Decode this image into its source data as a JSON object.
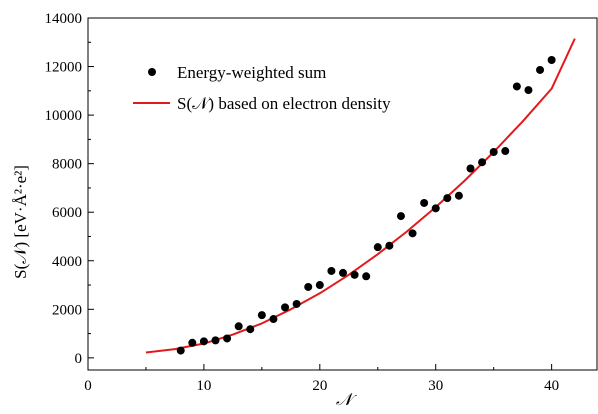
{
  "chart_data": {
    "type": "scatter",
    "title": "",
    "xlabel": "𝒩",
    "ylabel": "S(𝒩) [eV·Å²·e²]",
    "xlim": [
      0,
      44
    ],
    "ylim": [
      -500,
      14000
    ],
    "xticks": [
      0,
      10,
      20,
      30,
      40
    ],
    "yticks": [
      0,
      2000,
      4000,
      6000,
      8000,
      10000,
      12000,
      14000
    ],
    "grid": false,
    "legend_position": "top-left",
    "series": [
      {
        "name": "Energy-weighted sum",
        "kind": "scatter",
        "color": "#000000",
        "x": [
          8,
          9,
          10,
          11,
          12,
          13,
          14,
          15,
          16,
          17,
          18,
          19,
          20,
          21,
          22,
          23,
          24,
          25,
          26,
          27,
          28,
          29,
          30,
          31,
          32,
          33,
          34,
          35,
          36,
          37,
          38,
          39,
          40
        ],
        "y": [
          300,
          620,
          680,
          720,
          800,
          1300,
          1180,
          1760,
          1600,
          2080,
          2220,
          2920,
          3000,
          3580,
          3500,
          3420,
          3360,
          4560,
          4620,
          5840,
          5130,
          6380,
          6160,
          6580,
          6680,
          7800,
          8060,
          8480,
          8520,
          11180,
          11030,
          11860,
          12270
        ]
      },
      {
        "name": "S(𝒩) based on electron density",
        "kind": "line",
        "color": "#e31a1c",
        "x": [
          5,
          7.5,
          10,
          12.5,
          15,
          17.5,
          20,
          22.5,
          25,
          27.5,
          30,
          32.5,
          35,
          37.5,
          40,
          42
        ],
        "y": [
          220,
          360,
          590,
          960,
          1420,
          2000,
          2660,
          3420,
          4270,
          5200,
          6210,
          7300,
          8480,
          9740,
          11090,
          13150
        ]
      }
    ]
  }
}
